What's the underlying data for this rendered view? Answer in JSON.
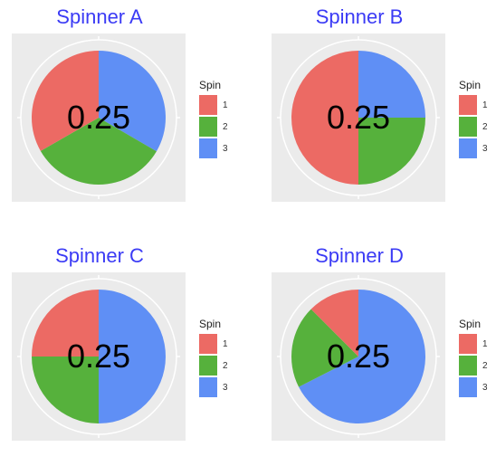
{
  "chart_data": [
    {
      "type": "pie",
      "title": "Spinner A",
      "center_label": "0.25",
      "legend_title": "Spin",
      "categories": [
        "1",
        "2",
        "3"
      ],
      "values": [
        0.333,
        0.333,
        0.334
      ],
      "colors": [
        "#ec6a64",
        "#56b13c",
        "#5f8ff5"
      ],
      "legend_placement": "right"
    },
    {
      "type": "pie",
      "title": "Spinner B",
      "center_label": "0.25",
      "legend_title": "Spin",
      "categories": [
        "1",
        "2",
        "3"
      ],
      "values": [
        0.5,
        0.25,
        0.25
      ],
      "colors": [
        "#ec6a64",
        "#56b13c",
        "#5f8ff5"
      ],
      "legend_placement": "right"
    },
    {
      "type": "pie",
      "title": "Spinner C",
      "center_label": "0.25",
      "legend_title": "Spin",
      "categories": [
        "1",
        "2",
        "3"
      ],
      "values": [
        0.25,
        0.25,
        0.5
      ],
      "colors": [
        "#ec6a64",
        "#56b13c",
        "#5f8ff5"
      ],
      "legend_placement": "right"
    },
    {
      "type": "pie",
      "title": "Spinner D",
      "center_label": "0.25",
      "legend_title": "Spin",
      "categories": [
        "1",
        "2",
        "3"
      ],
      "values": [
        0.125,
        0.2,
        0.675
      ],
      "colors": [
        "#ec6a64",
        "#56b13c",
        "#5f8ff5"
      ],
      "legend_placement": "right"
    }
  ]
}
